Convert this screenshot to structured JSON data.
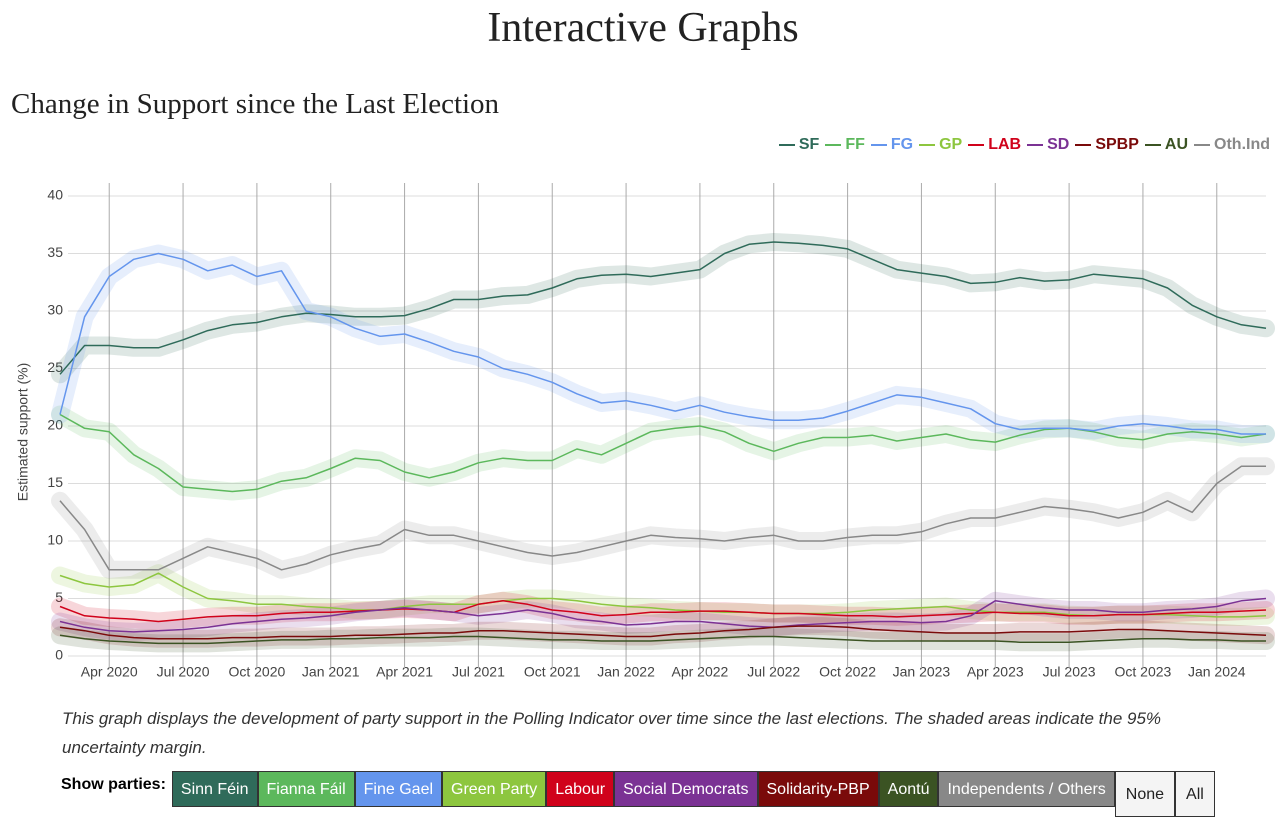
{
  "page": {
    "title": "Interactive Graphs"
  },
  "chart_data": {
    "type": "line",
    "title": "Change in Support since the Last Election",
    "y_label": "Estimated support (%)",
    "x": [
      "2020-02",
      "2020-03",
      "2020-04",
      "2020-05",
      "2020-06",
      "2020-07",
      "2020-08",
      "2020-09",
      "2020-10",
      "2020-11",
      "2020-12",
      "2021-01",
      "2021-02",
      "2021-03",
      "2021-04",
      "2021-05",
      "2021-06",
      "2021-07",
      "2021-08",
      "2021-09",
      "2021-10",
      "2021-11",
      "2021-12",
      "2022-01",
      "2022-02",
      "2022-03",
      "2022-04",
      "2022-05",
      "2022-06",
      "2022-07",
      "2022-08",
      "2022-09",
      "2022-10",
      "2022-11",
      "2022-12",
      "2023-01",
      "2023-02",
      "2023-03",
      "2023-04",
      "2023-05",
      "2023-06",
      "2023-07",
      "2023-08",
      "2023-09",
      "2023-10",
      "2023-11",
      "2023-12",
      "2024-01",
      "2024-02",
      "2024-03"
    ],
    "xlim": [
      "2020-02",
      "2024-03"
    ],
    "xticks": [
      {
        "value": "2020-04",
        "label": "Apr 2020"
      },
      {
        "value": "2020-07",
        "label": "Jul 2020"
      },
      {
        "value": "2020-10",
        "label": "Oct 2020"
      },
      {
        "value": "2021-01",
        "label": "Jan 2021"
      },
      {
        "value": "2021-04",
        "label": "Apr 2021"
      },
      {
        "value": "2021-07",
        "label": "Jul 2021"
      },
      {
        "value": "2021-10",
        "label": "Oct 2021"
      },
      {
        "value": "2022-01",
        "label": "Jan 2022"
      },
      {
        "value": "2022-04",
        "label": "Apr 2022"
      },
      {
        "value": "2022-07",
        "label": "Jul 2022"
      },
      {
        "value": "2022-10",
        "label": "Oct 2022"
      },
      {
        "value": "2023-01",
        "label": "Jan 2023"
      },
      {
        "value": "2023-04",
        "label": "Apr 2023"
      },
      {
        "value": "2023-07",
        "label": "Jul 2023"
      },
      {
        "value": "2023-10",
        "label": "Oct 2023"
      },
      {
        "value": "2024-01",
        "label": "Jan 2024"
      }
    ],
    "ylim": [
      0,
      40
    ],
    "yticks": [
      0,
      5,
      10,
      15,
      20,
      25,
      30,
      35,
      40
    ],
    "grid": true,
    "legend": "top-right",
    "uncertainty_band": true,
    "series": [
      {
        "name": "SF",
        "color": "#2f6b5a",
        "values": [
          24.5,
          27,
          27,
          26.8,
          26.8,
          27.5,
          28.3,
          28.8,
          29,
          29.5,
          29.8,
          29.7,
          29.5,
          29.5,
          29.6,
          30.2,
          31,
          31,
          31.3,
          31.4,
          32,
          32.8,
          33.1,
          33.2,
          33,
          33.3,
          33.6,
          35,
          35.8,
          36,
          35.9,
          35.7,
          35.4,
          34.5,
          33.6,
          33.3,
          33,
          32.4,
          32.5,
          32.9,
          32.6,
          32.7,
          33.2,
          33,
          32.8,
          32,
          30.5,
          29.5,
          28.8,
          28.5
        ]
      },
      {
        "name": "FF",
        "color": "#5cb85c",
        "values": [
          21,
          19.8,
          19.5,
          17.5,
          16.3,
          14.7,
          14.5,
          14.3,
          14.5,
          15.2,
          15.5,
          16.3,
          17.2,
          17,
          16,
          15.5,
          16,
          16.8,
          17.2,
          17,
          17,
          18,
          17.5,
          18.5,
          19.5,
          19.8,
          20,
          19.5,
          18.5,
          17.8,
          18.5,
          19,
          19,
          19.2,
          18.7,
          19,
          19.3,
          18.8,
          18.6,
          19.2,
          19.7,
          19.8,
          19.5,
          19,
          18.8,
          19.3,
          19.5,
          19.3,
          19,
          19.3
        ]
      },
      {
        "name": "FG",
        "color": "#6495ed",
        "values": [
          21,
          29.5,
          33,
          34.5,
          35,
          34.5,
          33.5,
          34,
          33,
          33.5,
          30,
          29.5,
          28.5,
          27.8,
          28,
          27.3,
          26.5,
          26,
          25,
          24.5,
          23.8,
          22.8,
          22,
          22.2,
          21.8,
          21.3,
          21.8,
          21.2,
          20.8,
          20.5,
          20.5,
          20.7,
          21.3,
          22,
          22.7,
          22.5,
          22,
          21.5,
          20.2,
          19.7,
          19.8,
          19.8,
          19.6,
          20,
          20.2,
          20,
          19.7,
          19.7,
          19.3,
          19.3
        ]
      },
      {
        "name": "GP",
        "color": "#8dc63f",
        "values": [
          7,
          6.3,
          6,
          6.2,
          7.2,
          6,
          5,
          4.8,
          4.5,
          4.5,
          4.3,
          4.2,
          4,
          4,
          4.3,
          4.5,
          4.5,
          4.5,
          4.8,
          5,
          5,
          4.8,
          4.5,
          4.3,
          4.2,
          4,
          3.9,
          3.8,
          3.8,
          3.7,
          3.7,
          3.7,
          3.8,
          4,
          4.1,
          4.2,
          4.3,
          4,
          3.8,
          3.8,
          3.8,
          3.6,
          3.5,
          3.6,
          3.6,
          3.6,
          3.5,
          3.4,
          3.4,
          3.5
        ]
      },
      {
        "name": "LAB",
        "color": "#d0021b",
        "values": [
          4.3,
          3.5,
          3.3,
          3.2,
          3,
          3.2,
          3.4,
          3.5,
          3.5,
          3.7,
          3.8,
          3.8,
          3.9,
          4,
          4.1,
          4,
          3.8,
          4.5,
          4.8,
          4.5,
          4,
          3.8,
          3.5,
          3.6,
          3.8,
          3.8,
          3.9,
          3.9,
          3.8,
          3.7,
          3.7,
          3.6,
          3.5,
          3.5,
          3.4,
          3.5,
          3.6,
          3.7,
          3.8,
          3.7,
          3.7,
          3.5,
          3.5,
          3.6,
          3.6,
          3.7,
          3.8,
          3.8,
          3.9,
          4
        ]
      },
      {
        "name": "SD",
        "color": "#7b3294",
        "values": [
          3,
          2.5,
          2.2,
          2.1,
          2.2,
          2.3,
          2.5,
          2.8,
          3,
          3.2,
          3.3,
          3.5,
          3.8,
          4,
          4.2,
          4,
          3.8,
          3.5,
          3.7,
          4,
          3.7,
          3.2,
          3,
          2.7,
          2.8,
          3,
          3,
          2.8,
          2.6,
          2.5,
          2.7,
          2.8,
          2.9,
          3,
          3,
          2.9,
          3,
          3.5,
          4.8,
          4.5,
          4.2,
          4,
          4,
          3.8,
          3.8,
          4,
          4.1,
          4.3,
          4.8,
          5
        ]
      },
      {
        "name": "SPBP",
        "color": "#7a0a0a",
        "values": [
          2.5,
          2.2,
          1.8,
          1.6,
          1.5,
          1.5,
          1.5,
          1.6,
          1.6,
          1.7,
          1.7,
          1.7,
          1.8,
          1.8,
          1.9,
          2,
          2,
          2.2,
          2.2,
          2.1,
          2,
          1.9,
          1.8,
          1.7,
          1.7,
          1.9,
          2,
          2.2,
          2.3,
          2.5,
          2.6,
          2.6,
          2.5,
          2.3,
          2.2,
          2.1,
          2,
          2,
          2,
          2.1,
          2.1,
          2.1,
          2.2,
          2.3,
          2.3,
          2.2,
          2.1,
          2,
          1.9,
          1.8
        ]
      },
      {
        "name": "AU",
        "color": "#3b5323",
        "values": [
          1.8,
          1.5,
          1.3,
          1.2,
          1.1,
          1.1,
          1.1,
          1.2,
          1.3,
          1.4,
          1.4,
          1.5,
          1.5,
          1.6,
          1.6,
          1.6,
          1.7,
          1.7,
          1.6,
          1.5,
          1.4,
          1.4,
          1.3,
          1.3,
          1.3,
          1.4,
          1.5,
          1.6,
          1.7,
          1.7,
          1.6,
          1.5,
          1.4,
          1.3,
          1.3,
          1.3,
          1.3,
          1.3,
          1.3,
          1.2,
          1.2,
          1.2,
          1.3,
          1.4,
          1.5,
          1.5,
          1.4,
          1.4,
          1.3,
          1.3
        ]
      },
      {
        "name": "Oth.Ind",
        "color": "#888888",
        "values": [
          13.5,
          11,
          7.5,
          7.5,
          7.5,
          8.5,
          9.5,
          9,
          8.5,
          7.5,
          8,
          8.8,
          9.3,
          9.7,
          11,
          10.5,
          10.5,
          10,
          9.5,
          9,
          8.7,
          9,
          9.5,
          10,
          10.5,
          10.3,
          10.2,
          10,
          10.3,
          10.5,
          10,
          10,
          10.3,
          10.5,
          10.5,
          10.8,
          11.5,
          12,
          12,
          12.5,
          13,
          12.8,
          12.5,
          12,
          12.5,
          13.5,
          12.5,
          15,
          16.5,
          16.5
        ]
      }
    ]
  },
  "caption": "This graph displays the development of party support in the Polling Indicator over time since the last elections. The shaded areas indicate the 95% uncertainty margin.",
  "controls": {
    "label": "Show parties:",
    "buttons": [
      {
        "label": "Sinn Féin",
        "color": "#2f6b5a"
      },
      {
        "label": "Fianna Fáil",
        "color": "#5cb85c"
      },
      {
        "label": "Fine Gael",
        "color": "#6495ed"
      },
      {
        "label": "Green Party",
        "color": "#8dc63f"
      },
      {
        "label": "Labour",
        "color": "#d0021b"
      },
      {
        "label": "Social Democrats",
        "color": "#7b3294"
      },
      {
        "label": "Solidarity-PBP",
        "color": "#7a0a0a"
      },
      {
        "label": "Aontú",
        "color": "#3b5323"
      },
      {
        "label": "Independents / Others",
        "color": "#888888"
      }
    ],
    "none": "None",
    "all": "All"
  }
}
